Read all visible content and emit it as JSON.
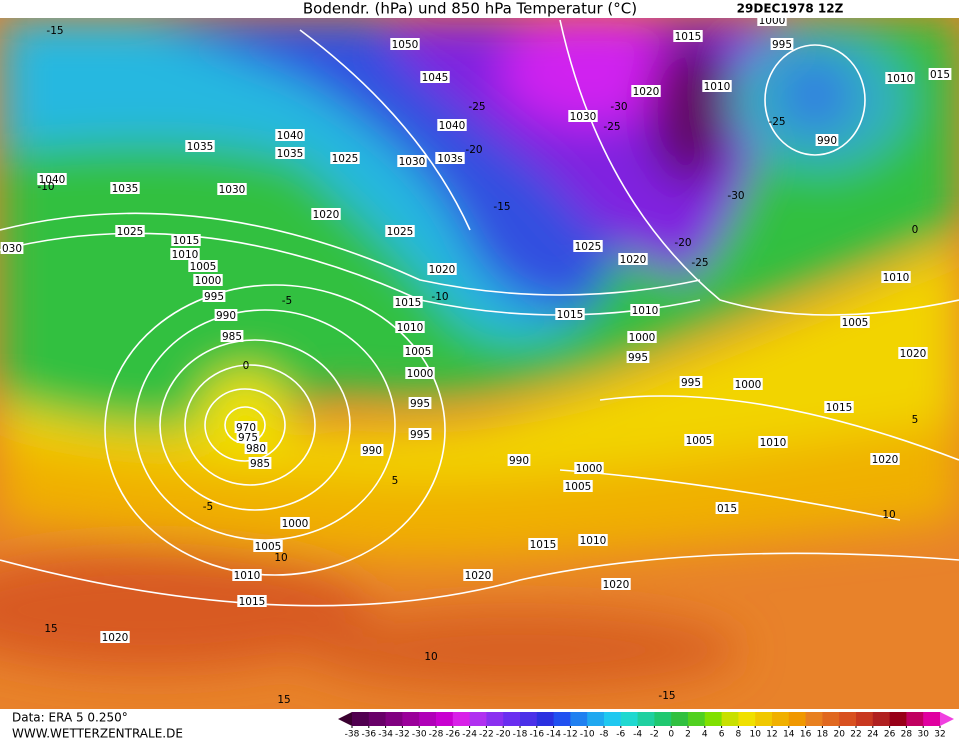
{
  "title": "Bodendr. (hPa) und 850 hPa Temperatur (°C)",
  "date": "29DEC1978 12Z",
  "footer": {
    "data": "Data: ERA 5 0.250°",
    "site": "WWW.WETTERZENTRALE.DE"
  },
  "isobar_labels": [
    "1050",
    "1045",
    "1040",
    "103s",
    "1030",
    "1025",
    "1020",
    "1025",
    "1020",
    "1015",
    "1010",
    "1005",
    "1000",
    "995",
    "995",
    "990",
    "990",
    "1000",
    "1005",
    "1015",
    "1010",
    "1020",
    "1020",
    "1000",
    "1005",
    "1010",
    "1015",
    "1020",
    "970",
    "975",
    "980",
    "985",
    "985",
    "990",
    "995",
    "1000",
    "1005",
    "1010",
    "1015",
    "1025",
    "1035",
    "1040",
    "1035",
    "1040",
    "1035",
    "1030",
    "030",
    "1030",
    "1020",
    "1015",
    "1010",
    "1000",
    "995",
    "990",
    "1010",
    "015",
    "1025",
    "1020",
    "1015",
    "1010",
    "1000",
    "995",
    "995",
    "1000",
    "1015",
    "1005",
    "1010",
    "1020",
    "015",
    "1010",
    "1005",
    "1020"
  ],
  "temperature_labels": [
    "-25",
    "-20",
    "-15",
    "-10",
    "-30",
    "-25",
    "-30",
    "-25",
    "-20",
    "-25",
    "-10",
    "-15",
    "-5",
    "0",
    "-5",
    "5",
    "10",
    "15",
    "10",
    "15",
    "-15",
    "10",
    "0",
    "5"
  ],
  "colorbar": {
    "ticks": [
      -38,
      -36,
      -34,
      -32,
      -30,
      -28,
      -26,
      -24,
      -22,
      -20,
      -18,
      -16,
      -14,
      -12,
      -10,
      -8,
      -6,
      -4,
      -2,
      0,
      2,
      4,
      6,
      8,
      10,
      12,
      14,
      16,
      18,
      20,
      22,
      24,
      26,
      28,
      30,
      32
    ],
    "colors": [
      "#3a0030",
      "#500050",
      "#680068",
      "#800080",
      "#9a009a",
      "#b000b8",
      "#c800d0",
      "#d820e8",
      "#b030f0",
      "#8a30f0",
      "#6a2ef0",
      "#4a30e8",
      "#2a30e0",
      "#2050f0",
      "#2080f0",
      "#20a8f0",
      "#20c8f0",
      "#20d8d0",
      "#20d0a0",
      "#20c870",
      "#30c040",
      "#50d020",
      "#80e000",
      "#c8e000",
      "#f0e000",
      "#f0c800",
      "#f0b000",
      "#f09800",
      "#e88020",
      "#e06820",
      "#d85020",
      "#c83820",
      "#b02020",
      "#980018",
      "#c00060",
      "#e000a0",
      "#f040e0"
    ]
  }
}
